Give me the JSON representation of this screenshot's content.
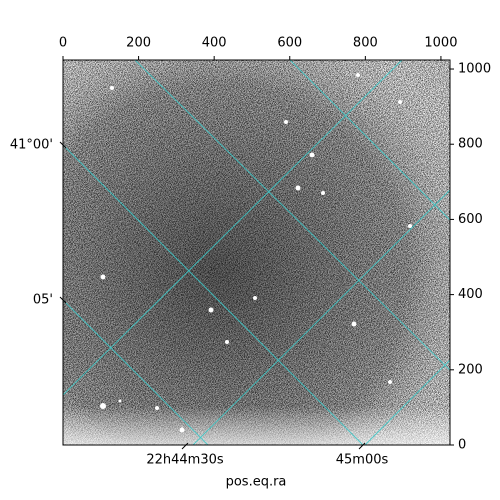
{
  "chart_data": {
    "type": "image",
    "xlabel": "pos.eq.ra",
    "xlim": [
      0,
      1024
    ],
    "xticks": [
      0,
      200,
      400,
      600,
      800,
      1000
    ],
    "ylim": [
      0,
      1024
    ],
    "yticks": [
      0,
      200,
      400,
      600,
      800,
      1000
    ],
    "ra_ticks": [
      "22h44m30s",
      "45m00s"
    ],
    "dec_ticks": [
      "41°00'",
      "05'"
    ]
  }
}
